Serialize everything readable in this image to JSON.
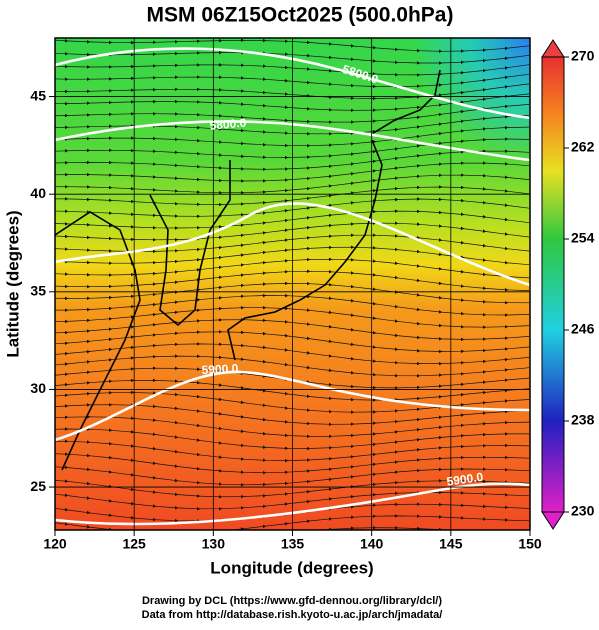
{
  "chart_data": {
    "type": "map",
    "title": "MSM 06Z15Oct2025 (500.0hPa)",
    "xlabel": "Longitude (degrees)",
    "ylabel": "Latitude  (degrees)",
    "xlim": [
      120,
      150
    ],
    "xticks": [
      120,
      125,
      130,
      135,
      140,
      145,
      150
    ],
    "ylim": [
      22.8,
      48
    ],
    "yticks": [
      25,
      30,
      35,
      40,
      45
    ],
    "grid": true,
    "colorbar": {
      "lim": [
        230,
        270
      ],
      "ticks": [
        230,
        238,
        246,
        254,
        262,
        270
      ]
    },
    "contour_labels": [
      "5800.0",
      "5800.0",
      "5900.0",
      "5900.0"
    ]
  },
  "footer": [
    "Drawing by DCL (https://www.gfd-dennou.org/library/dcl/)",
    "Data from http://database.rish.kyoto-u.ac.jp/arch/jmadata/"
  ]
}
